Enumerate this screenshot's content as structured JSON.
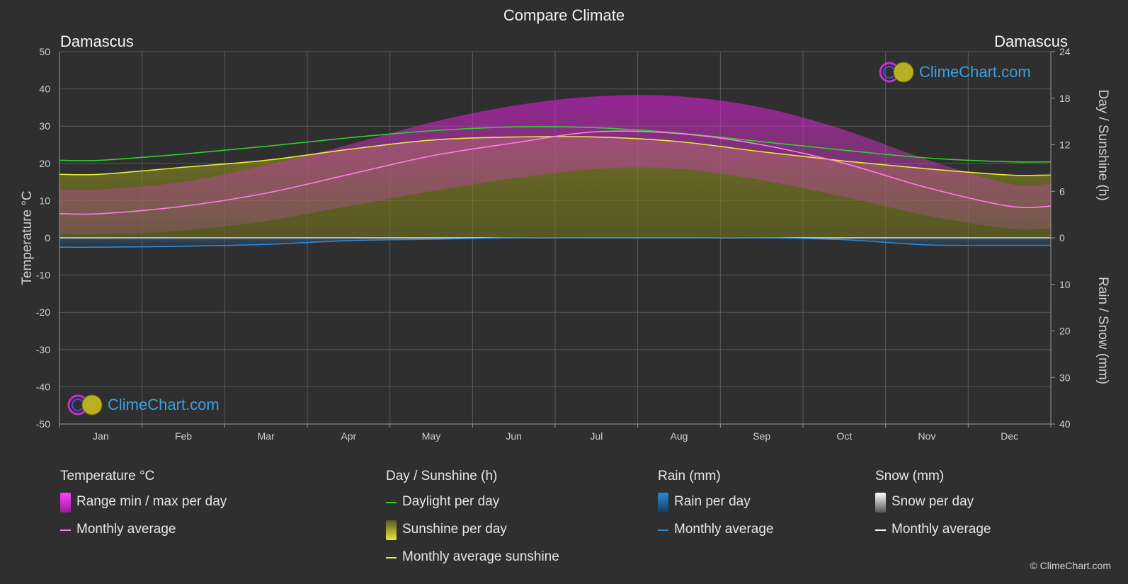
{
  "title": "Compare Climate",
  "location_left": "Damascus",
  "location_right": "Damascus",
  "logo_text": "ClimeChart.com",
  "copyright": "© ClimeChart.com",
  "colors": {
    "background": "#2f2f2f",
    "temperature_range": "#d21ed2",
    "temperature_avg": "#ff7ce6",
    "daylight": "#2fd02f",
    "sunshine_fill": "#a0a020",
    "sunshine_avg": "#e8e83a",
    "rain": "#2a8ad8",
    "rain_avg": "#2a8ad8",
    "snow": "#b0b0b0",
    "snow_avg": "#ffffff",
    "grid": "#6a6a6a"
  },
  "legend": {
    "temperature": {
      "heading": "Temperature °C",
      "range": "Range min / max per day",
      "avg": "Monthly average"
    },
    "sunshine": {
      "heading": "Day / Sunshine (h)",
      "daylight": "Daylight per day",
      "sunshine": "Sunshine per day",
      "avg": "Monthly average sunshine"
    },
    "rain": {
      "heading": "Rain (mm)",
      "per_day": "Rain per day",
      "avg": "Monthly average"
    },
    "snow": {
      "heading": "Snow (mm)",
      "per_day": "Snow per day",
      "avg": "Monthly average"
    }
  },
  "chart_data": {
    "type": "area",
    "categories": [
      "Jan",
      "Feb",
      "Mar",
      "Apr",
      "May",
      "Jun",
      "Jul",
      "Aug",
      "Sep",
      "Oct",
      "Nov",
      "Dec"
    ],
    "left_axis": {
      "label": "Temperature °C",
      "ylim": [
        -50,
        50
      ],
      "ticks": [
        50,
        40,
        30,
        20,
        10,
        0,
        -10,
        -20,
        -30,
        -40,
        -50
      ]
    },
    "right_axis_top": {
      "label": "Day / Sunshine (h)",
      "ylim": [
        0,
        24
      ],
      "ticks": [
        24,
        18,
        12,
        6,
        0
      ]
    },
    "right_axis_bottom": {
      "label": "Rain / Snow (mm)",
      "ylim": [
        0,
        40
      ],
      "ticks": [
        10,
        20,
        30,
        40
      ]
    },
    "grid": true,
    "series": [
      {
        "name": "Monthly average",
        "axis": "temperature",
        "values": [
          6.5,
          8.5,
          12,
          17,
          22,
          25.5,
          28.5,
          28,
          25,
          20,
          13.5,
          8.5
        ]
      },
      {
        "name": "Range min / max per day",
        "axis": "temperature",
        "min": [
          1,
          2,
          4.5,
          8.5,
          12.5,
          16,
          18.5,
          18.5,
          15.5,
          11,
          6,
          2.5
        ],
        "max": [
          13,
          15,
          19.5,
          25,
          31,
          35.5,
          38,
          38,
          35,
          29,
          21,
          14.5
        ]
      },
      {
        "name": "Daylight per day",
        "axis": "sunshine",
        "values": [
          10.0,
          10.8,
          11.8,
          12.9,
          13.8,
          14.3,
          14.2,
          13.5,
          12.4,
          11.3,
          10.3,
          9.8
        ]
      },
      {
        "name": "Monthly average sunshine",
        "axis": "sunshine",
        "values": [
          8.2,
          9.1,
          10.0,
          11.4,
          12.6,
          13.0,
          13.0,
          12.4,
          11.1,
          9.9,
          8.9,
          8.1
        ]
      },
      {
        "name": "Rain monthly average",
        "axis": "rain",
        "values": [
          2.0,
          1.8,
          1.4,
          0.6,
          0.3,
          0.0,
          0.0,
          0.0,
          0.0,
          0.4,
          1.5,
          1.6
        ]
      },
      {
        "name": "Snow monthly average",
        "axis": "rain",
        "values": [
          0.1,
          0.05,
          0,
          0,
          0,
          0,
          0,
          0,
          0,
          0,
          0,
          0.05
        ]
      }
    ]
  }
}
